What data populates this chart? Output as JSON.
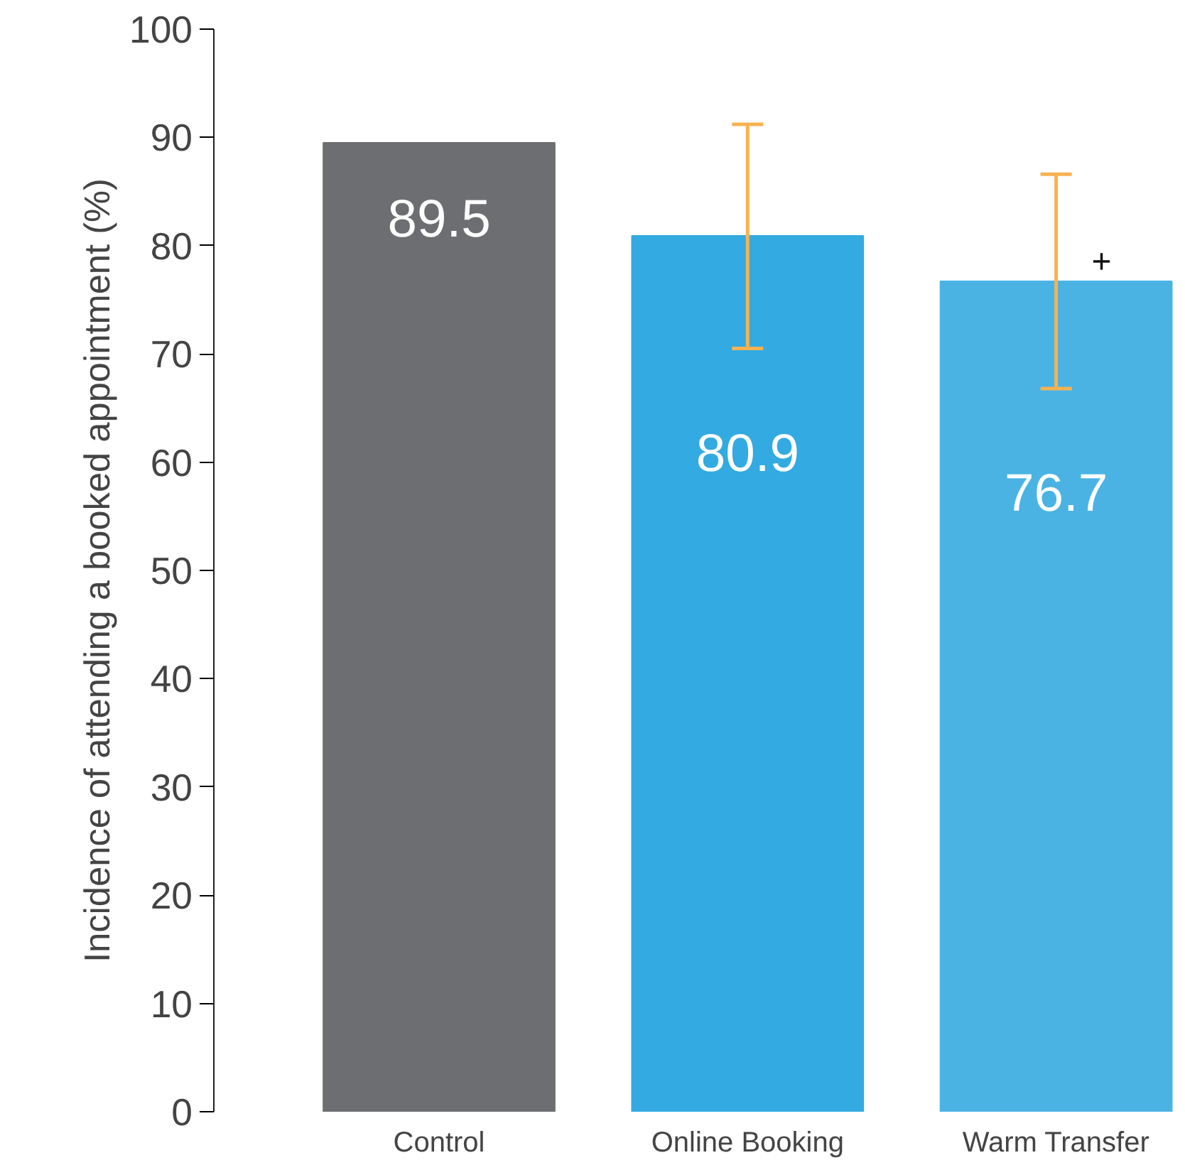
{
  "chart_data": {
    "type": "bar",
    "ylabel": "Incidence of attending a booked appointment (%)",
    "categories": [
      "Control",
      "Online Booking",
      "Warm Transfer"
    ],
    "values": [
      89.5,
      80.9,
      76.7
    ],
    "colors": [
      "#6d6e71",
      "#33aae1",
      "#4ab3e4"
    ],
    "errors": [
      null,
      [
        70.5,
        91.2
      ],
      [
        66.8,
        86.6
      ]
    ],
    "data_labels": true,
    "annotations": [
      {
        "text": "+",
        "x": "Warm Transfer",
        "y": 78.6
      }
    ],
    "ylim": [
      0,
      100
    ],
    "yticks": [
      0,
      10,
      20,
      30,
      40,
      50,
      60,
      70,
      80,
      90,
      100
    ],
    "grid": false
  }
}
